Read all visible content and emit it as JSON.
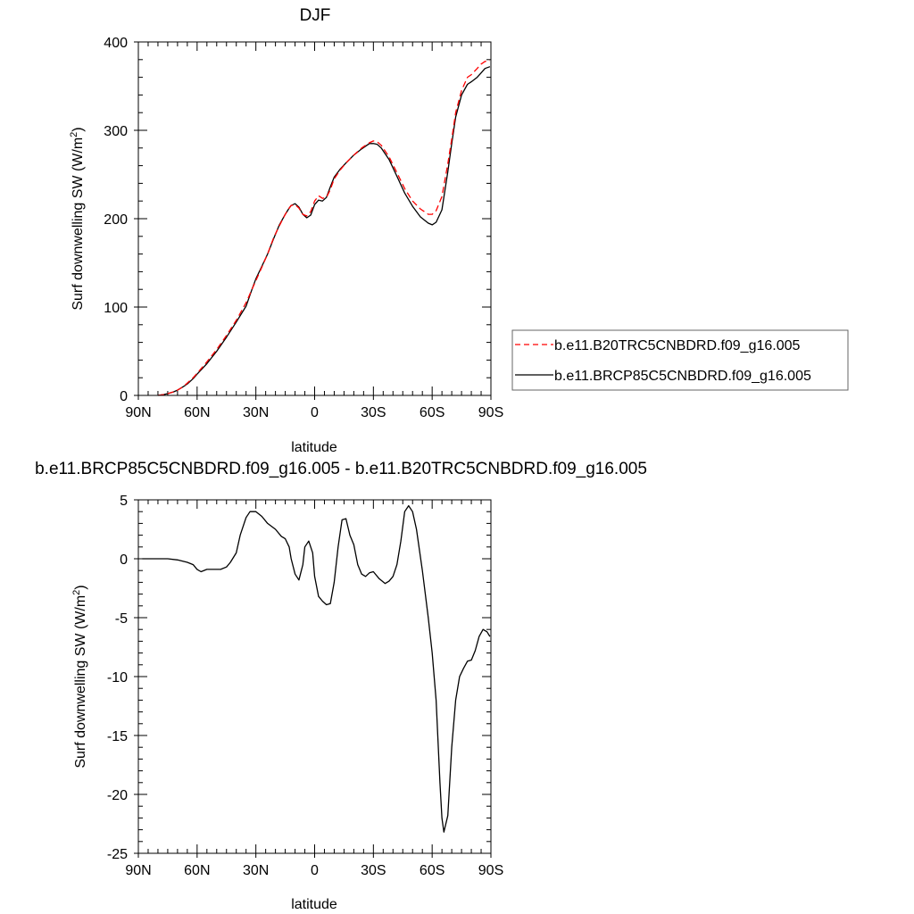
{
  "chart_data": [
    {
      "type": "line",
      "title": "DJF",
      "xlabel": "latitude",
      "ylabel": "Surf downwelling SW (W/m",
      "ylabel_sup": "2",
      "ylabel_close": ")",
      "xlim": [
        90,
        -90
      ],
      "ylim": [
        0,
        400
      ],
      "xticks": [
        90,
        60,
        30,
        0,
        -30,
        -60,
        -90
      ],
      "xtick_labels": [
        "90N",
        "60N",
        "30N",
        "0",
        "30S",
        "60S",
        "90S"
      ],
      "yticks": [
        0,
        100,
        200,
        300,
        400
      ],
      "ytick_labels": [
        "0",
        "100",
        "200",
        "300",
        "400"
      ],
      "legend_position": "right",
      "series": [
        {
          "name": "b.e11.B20TRC5CNBDRD.f09_g16.005",
          "color": "#ff0000",
          "dash": "dashed",
          "x": [
            80,
            77,
            75,
            72,
            70,
            67,
            65,
            62,
            60,
            55,
            50,
            45,
            40,
            35,
            32,
            30,
            27,
            24,
            21,
            18,
            15,
            13,
            12,
            10,
            8,
            6,
            4,
            2,
            0,
            -2,
            -4,
            -6,
            -8,
            -10,
            -13,
            -16,
            -20,
            -24,
            -28,
            -30,
            -32,
            -34,
            -38,
            -42,
            -46,
            -50,
            -54,
            -58,
            -60,
            -62,
            -65,
            -68,
            -70,
            -72,
            -75,
            -78,
            -80,
            -83,
            -85,
            -87,
            -89.5
          ],
          "y": [
            0,
            1,
            2,
            4,
            6,
            10,
            14,
            20,
            25,
            38,
            52,
            68,
            85,
            105,
            120,
            130,
            145,
            160,
            178,
            192,
            205,
            212,
            215,
            216,
            212,
            205,
            203,
            208,
            220,
            226,
            223,
            224,
            233,
            245,
            255,
            263,
            272,
            280,
            286,
            288,
            287,
            283,
            270,
            252,
            234,
            220,
            211,
            205,
            205,
            209,
            225,
            262,
            290,
            320,
            345,
            360,
            363,
            370,
            375,
            378,
            379
          ]
        },
        {
          "name": "b.e11.BRCP85C5CNBDRD.f09_g16.005",
          "color": "#000000",
          "dash": "solid",
          "x": [
            80,
            77,
            75,
            72,
            70,
            67,
            65,
            62,
            60,
            55,
            50,
            45,
            40,
            35,
            32,
            30,
            27,
            24,
            21,
            18,
            15,
            13,
            12,
            10,
            8,
            6,
            4,
            2,
            0,
            -2,
            -4,
            -6,
            -8,
            -10,
            -13,
            -16,
            -20,
            -24,
            -28,
            -30,
            -32,
            -34,
            -38,
            -42,
            -46,
            -50,
            -54,
            -58,
            -60,
            -62,
            -65,
            -68,
            -70,
            -72,
            -75,
            -78,
            -80,
            -83,
            -85,
            -87,
            -89.5
          ],
          "y": [
            0,
            1,
            2,
            4,
            6,
            10,
            13,
            19,
            24,
            36,
            50,
            66,
            83,
            101,
            120,
            132,
            146,
            160,
            177,
            193,
            205,
            212,
            215,
            217,
            213,
            205,
            201,
            204,
            216,
            221,
            220,
            224,
            236,
            247,
            256,
            263,
            272,
            279,
            285,
            285,
            284,
            280,
            267,
            248,
            229,
            214,
            202,
            195,
            193,
            196,
            210,
            253,
            285,
            315,
            340,
            352,
            355,
            360,
            365,
            370,
            372
          ]
        }
      ]
    },
    {
      "type": "line",
      "title": "b.e11.BRCP85C5CNBDRD.f09_g16.005 - b.e11.B20TRC5CNBDRD.f09_g16.005",
      "xlabel": "latitude",
      "ylabel": "Surf downwelling SW (W/m",
      "ylabel_sup": "2",
      "ylabel_close": ")",
      "xlim": [
        90,
        -90
      ],
      "ylim": [
        -25,
        5
      ],
      "xticks": [
        90,
        60,
        30,
        0,
        -30,
        -60,
        -90
      ],
      "xtick_labels": [
        "90N",
        "60N",
        "30N",
        "0",
        "30S",
        "60S",
        "90S"
      ],
      "yticks": [
        -25,
        -20,
        -15,
        -10,
        -5,
        0,
        5
      ],
      "ytick_labels": [
        "-25",
        "-20",
        "-15",
        "-10",
        "-5",
        "0",
        "5"
      ],
      "series": [
        {
          "color": "#000000",
          "dash": "solid",
          "x": [
            88,
            80,
            75,
            70,
            65,
            62,
            60,
            58,
            55,
            52,
            48,
            45,
            43,
            40,
            38,
            35,
            33,
            30,
            27,
            24,
            20,
            17,
            15,
            13,
            12,
            10,
            8,
            6,
            5,
            3,
            1,
            0,
            -2,
            -4,
            -6,
            -8,
            -10,
            -12,
            -14,
            -16,
            -18,
            -20,
            -22,
            -24,
            -26,
            -28,
            -30,
            -33,
            -36,
            -38,
            -40,
            -42,
            -44,
            -46,
            -48,
            -50,
            -52,
            -55,
            -58,
            -60,
            -62,
            -64,
            -65,
            -66,
            -68,
            -70,
            -72,
            -74,
            -76,
            -78,
            -80,
            -82,
            -84,
            -86,
            -88,
            -89.5
          ],
          "y": [
            0,
            0,
            0,
            -0.1,
            -0.3,
            -0.5,
            -0.9,
            -1.1,
            -0.9,
            -0.9,
            -0.9,
            -0.7,
            -0.3,
            0.5,
            2,
            3.5,
            4,
            4,
            3.6,
            3,
            2.5,
            1.9,
            1.7,
            1,
            0,
            -1.3,
            -1.8,
            -0.5,
            1.0,
            1.5,
            0.5,
            -1.5,
            -3.2,
            -3.6,
            -3.9,
            -3.8,
            -2,
            1,
            3.3,
            3.4,
            2,
            1.2,
            -0.5,
            -1.3,
            -1.5,
            -1.2,
            -1.1,
            -1.7,
            -2.1,
            -1.9,
            -1.5,
            -0.5,
            1.5,
            4.0,
            4.5,
            4.0,
            2.5,
            -1.0,
            -5.0,
            -8.0,
            -12,
            -19,
            -22,
            -23.2,
            -21.8,
            -16,
            -12,
            -10,
            -9.3,
            -8.7,
            -8.6,
            -7.8,
            -6.6,
            -6.0,
            -6.2,
            -6.6
          ]
        }
      ]
    }
  ]
}
